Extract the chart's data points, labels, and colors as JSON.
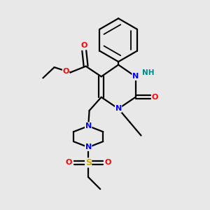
{
  "background_color": "#e8e8e8",
  "bond_color": "#000000",
  "atom_colors": {
    "O": "#ff0000",
    "N": "#0000ff",
    "S": "#ccaa00",
    "H": "#008888",
    "C": "#000000"
  },
  "figsize": [
    3.0,
    3.0
  ],
  "dpi": 100
}
